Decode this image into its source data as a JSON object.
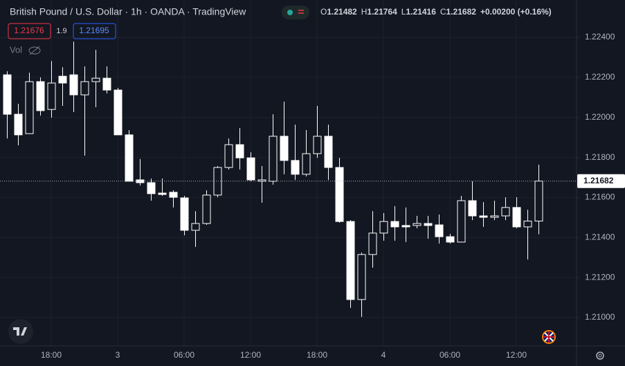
{
  "chart_data": {
    "type": "candlestick",
    "title": "British Pound / U.S. Dollar · 1h · OANDA · TradingView",
    "sell_price": "1.21676",
    "spread": "1.9",
    "buy_price": "1.21695",
    "volume_label": "Vol",
    "ohlc_letters": [
      "O",
      "H",
      "L",
      "C"
    ],
    "change": "+0.00200 (+0.16%)",
    "categories": [
      null,
      null,
      null,
      null,
      "18:00",
      null,
      null,
      null,
      null,
      null,
      "3",
      null,
      null,
      null,
      null,
      null,
      "06:00",
      null,
      null,
      null,
      null,
      null,
      "12:00",
      null,
      null,
      null,
      null,
      null,
      "18:00",
      null,
      null,
      null,
      null,
      null,
      "4",
      null,
      null,
      null,
      null,
      null,
      "06:00",
      null,
      null,
      null,
      null,
      null,
      "12:00",
      null,
      null
    ],
    "series": [
      {
        "name": "open",
        "values": [
          1.22213,
          1.22016,
          1.21919,
          1.22179,
          1.2204,
          1.22206,
          1.22213,
          1.22113,
          1.22179,
          1.22196,
          1.22137,
          1.21913,
          1.21688,
          1.21674,
          1.21622,
          1.21626,
          1.21598,
          1.21436,
          1.2147,
          1.21612,
          1.2175,
          1.21864,
          1.21798,
          1.21681,
          1.21681,
          1.21906,
          1.21785,
          1.21716,
          1.21819,
          1.21906,
          1.2175,
          1.2148,
          1.2109,
          1.21315,
          1.21422,
          1.2148,
          1.2146,
          1.2146,
          1.2147,
          1.21463,
          1.21404,
          1.21377,
          1.21584,
          1.21508,
          1.21501,
          1.21508,
          1.2155,
          1.21453,
          1.21482
        ]
      },
      {
        "name": "high",
        "values": [
          1.22231,
          1.22068,
          1.22224,
          1.222,
          1.22282,
          1.22251,
          1.22379,
          1.22255,
          1.22338,
          1.22255,
          1.22148,
          1.21937,
          1.21792,
          1.21695,
          1.21695,
          1.21636,
          1.21608,
          1.21532,
          1.21636,
          1.21757,
          1.21895,
          1.21947,
          1.21826,
          1.21757,
          1.22016,
          1.22079,
          1.21964,
          1.21937,
          1.22058,
          1.21964,
          1.21798,
          1.21487,
          1.21325,
          1.21532,
          1.21522,
          1.21557,
          1.2155,
          1.21508,
          1.21508,
          1.21515,
          1.21418,
          1.21608,
          1.21681,
          1.21577,
          1.21584,
          1.21601,
          1.21601,
          1.21539,
          1.21764
        ]
      },
      {
        "name": "low",
        "values": [
          1.21895,
          1.21861,
          1.21919,
          1.22009,
          1.21999,
          1.22058,
          1.22027,
          1.21809,
          1.22051,
          1.2212,
          1.21913,
          1.21681,
          1.2166,
          1.21584,
          1.21608,
          1.2155,
          1.21411,
          1.21353,
          1.21463,
          1.21601,
          1.2174,
          1.2174,
          1.21681,
          1.21574,
          1.21664,
          1.21716,
          1.21688,
          1.21705,
          1.21798,
          1.21688,
          1.21474,
          1.21048,
          1.21003,
          1.21249,
          1.21384,
          1.21384,
          1.21377,
          1.21446,
          1.21394,
          1.2137,
          1.2137,
          1.21377,
          1.21487,
          1.21453,
          1.21487,
          1.21487,
          1.21446,
          1.2129,
          1.21416
        ]
      },
      {
        "name": "close",
        "values": [
          1.22016,
          1.21913,
          1.22179,
          1.22034,
          1.22172,
          1.22172,
          1.22113,
          1.22179,
          1.22196,
          1.22137,
          1.21913,
          1.21681,
          1.21674,
          1.21619,
          1.21615,
          1.21601,
          1.21436,
          1.2147,
          1.21612,
          1.2175,
          1.21864,
          1.21798,
          1.21688,
          1.21688,
          1.21906,
          1.21785,
          1.21716,
          1.21819,
          1.21906,
          1.2175,
          1.2148,
          1.2109,
          1.21315,
          1.21422,
          1.2148,
          1.21453,
          1.21453,
          1.2147,
          1.2146,
          1.21404,
          1.21377,
          1.21584,
          1.21508,
          1.21501,
          1.21508,
          1.2155,
          1.21453,
          1.21482,
          1.21682
        ]
      }
    ],
    "up_fill": "#131722",
    "down_fill": "#ffffff",
    "border_color": "#ffffff",
    "ylim": [
      1.20858,
      1.22587
    ],
    "yticks": [
      {
        "value": 1.21,
        "label": "1.21000"
      },
      {
        "value": 1.212,
        "label": "1.21200"
      },
      {
        "value": 1.214,
        "label": "1.21400"
      },
      {
        "value": 1.216,
        "label": "1.21600"
      },
      {
        "value": 1.218,
        "label": "1.21800"
      },
      {
        "value": 1.22,
        "label": "1.22000"
      },
      {
        "value": 1.222,
        "label": "1.22200"
      },
      {
        "value": 1.224,
        "label": "1.22400"
      }
    ],
    "grid": true
  }
}
